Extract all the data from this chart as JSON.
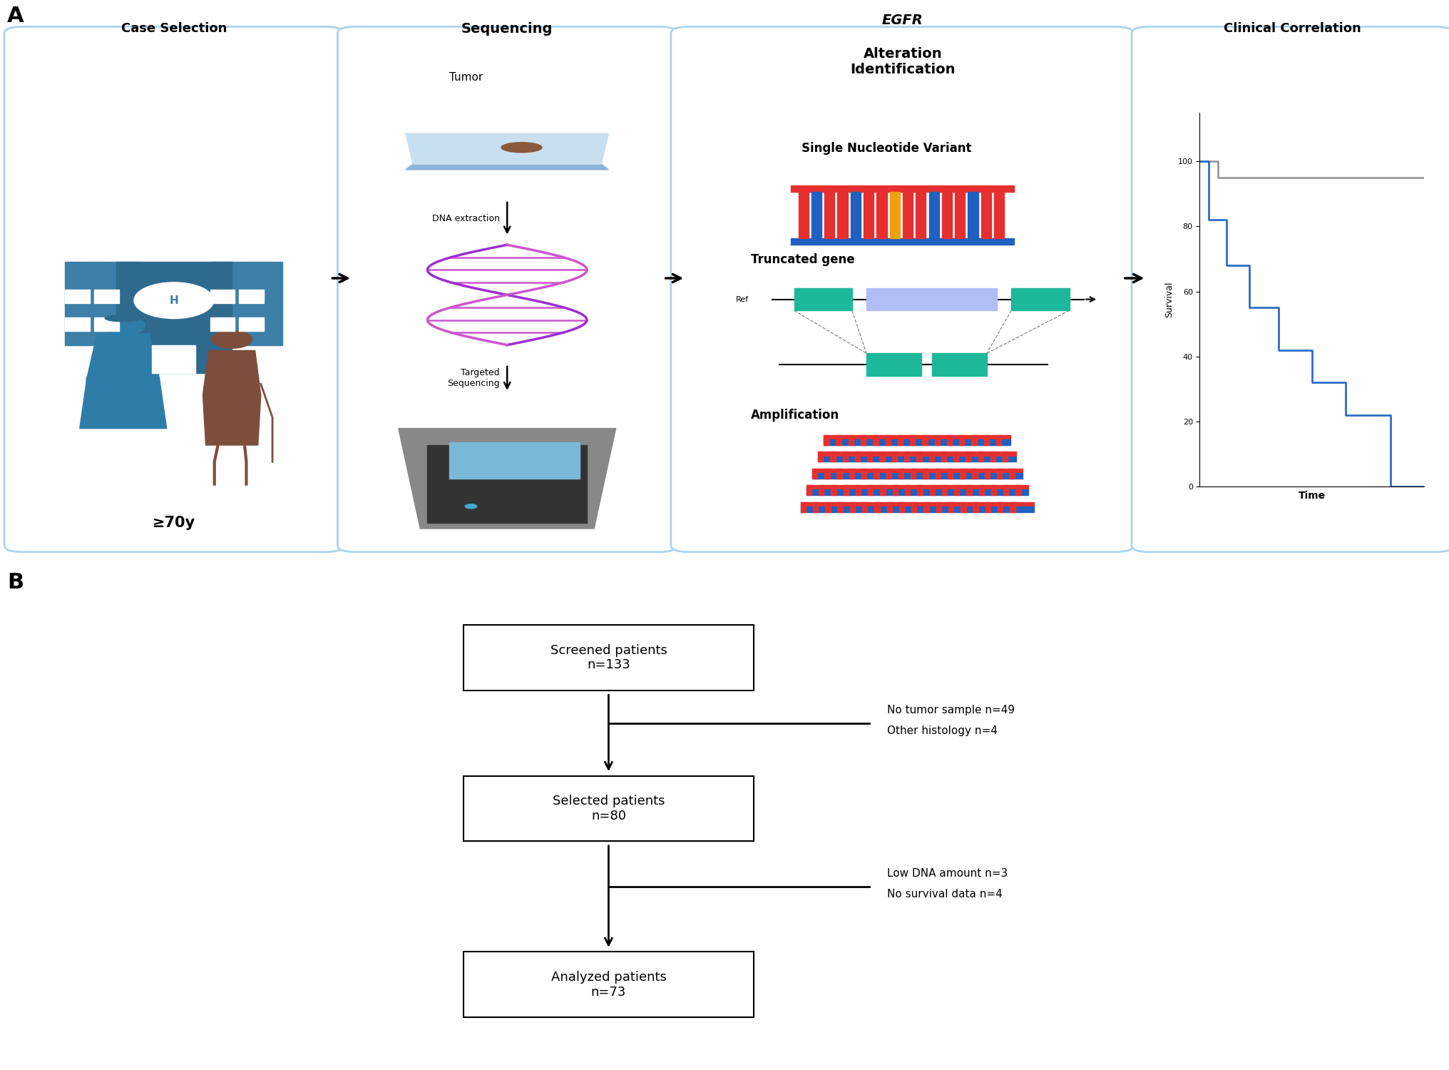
{
  "panel_a_title": "A",
  "panel_b_title": "B",
  "box1_title": "Case Selection",
  "box2_title": "Sequencing",
  "box3_title_italic": "EGFR",
  "box3_title_rest": " Alteration\nIdentification",
  "box4_title": "Clinical Correlation",
  "age_label": "≥70y",
  "seq_label1": "Tumor",
  "seq_label2": "DNA extraction",
  "seq_label3": "Targeted\nSequencing",
  "snv_label": "Single Nucleotide Variant",
  "trunc_label": "Truncated gene",
  "ref_label": "Ref",
  "amp_label": "Amplification",
  "survival_ylabel": "Survival",
  "time_xlabel": "Time",
  "box_border_color": "#aad4f0",
  "hospital_color": "#3d7fa8",
  "hospital_dark": "#2e6a8e",
  "person1_color": "#2e7da8",
  "person2_color": "#7d4e3c",
  "trunc_teal": "#1db89a",
  "trunc_lavender": "#b0bef5",
  "km_blue": "#2e6ec5",
  "km_gray": "#999999",
  "dna_color1": "#9b30d0",
  "dna_color2": "#cc55cc",
  "snv_red": "#e63030",
  "snv_blue": "#2060c0",
  "snv_orange": "#f0a010",
  "amp_red": "#e63030",
  "amp_blue": "#2060c0",
  "flowchart_box1": "Screened patients\nn=133",
  "flowchart_exc1_line1": "No tumor sample n=49",
  "flowchart_exc1_line2": "Other histology n=4",
  "flowchart_box2": "Selected patients\nn=80",
  "flowchart_exc2_line1": "Low DNA amount n=3",
  "flowchart_exc2_line2": "No survival data n=4",
  "flowchart_box3": "Analyzed patients\nn=73",
  "fig_width": 20.32,
  "fig_height": 15.0,
  "dpi": 100
}
